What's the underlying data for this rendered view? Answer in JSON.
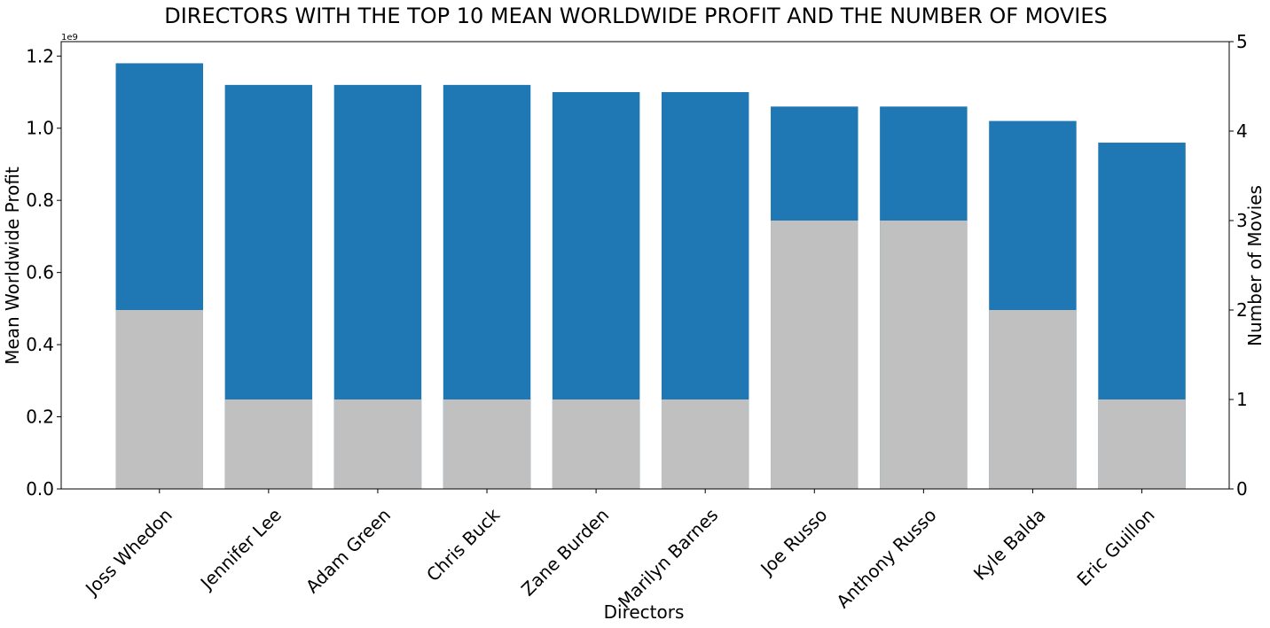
{
  "chart_data": {
    "type": "bar",
    "title": "DIRECTORS WITH THE TOP 10 MEAN WORLDWIDE PROFIT AND THE NUMBER OF MOVIES",
    "xlabel": "Directors",
    "ylabel": "Mean Worldwide Profit",
    "ylabel_right": "Number of Movies",
    "y_offset_label": "1e9",
    "categories": [
      "Joss Whedon",
      "Jennifer Lee",
      "Adam Green",
      "Chris Buck",
      "Zane Burden",
      "Marilyn Barnes",
      "Joe Russo",
      "Anthony Russo",
      "Kyle Balda",
      "Eric Guillon"
    ],
    "series": [
      {
        "axis": "left",
        "color": "#1f77b4",
        "values": [
          1.18,
          1.12,
          1.12,
          1.12,
          1.1,
          1.1,
          1.06,
          1.06,
          1.02,
          0.96
        ]
      },
      {
        "axis": "right",
        "color": "#c0c0c0",
        "values": [
          2,
          1,
          1,
          1,
          1,
          1,
          3,
          3,
          2,
          1
        ]
      }
    ],
    "ylim": [
      0,
      1.24
    ],
    "ylim_right": [
      0,
      5
    ],
    "yticks": [
      0.0,
      0.2,
      0.4,
      0.6,
      0.8,
      1.0,
      1.2
    ],
    "ytick_labels": [
      "0.0",
      "0.2",
      "0.4",
      "0.6",
      "0.8",
      "1.0",
      "1.2"
    ],
    "yticks_right": [
      0,
      1,
      2,
      3,
      4,
      5
    ],
    "ytick_labels_right": [
      "0",
      "1",
      "2",
      "3",
      "4",
      "5"
    ],
    "grid": false,
    "legend": "none"
  }
}
